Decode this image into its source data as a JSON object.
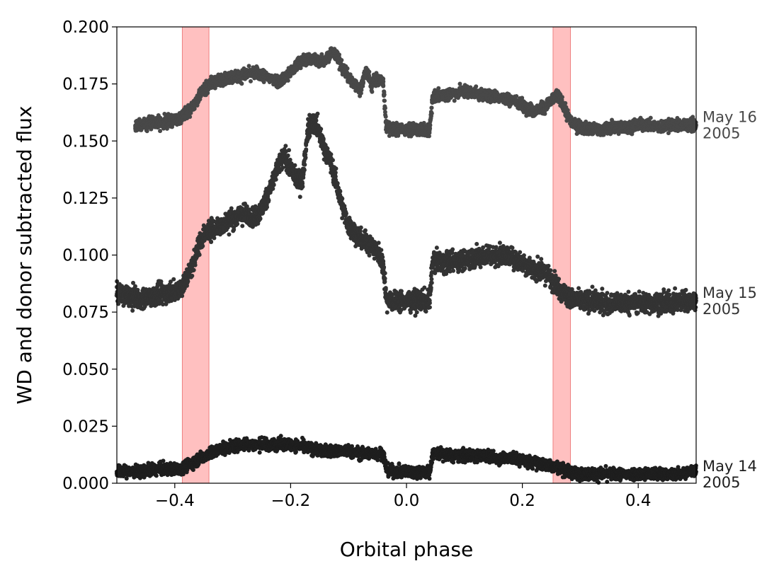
{
  "chart_data": {
    "type": "scatter",
    "title": "",
    "xlabel": "Orbital phase",
    "ylabel": "WD and donor subtracted flux",
    "xlim": [
      -0.5,
      0.5
    ],
    "ylim": [
      0.0,
      0.2
    ],
    "grid": false,
    "legend": "none",
    "x_ticks": [
      -0.4,
      -0.2,
      0.0,
      0.2,
      0.4
    ],
    "x_tick_labels": [
      "−0.4",
      "−0.2",
      "0.0",
      "0.2",
      "0.4"
    ],
    "y_ticks": [
      0.0,
      0.025,
      0.05,
      0.075,
      0.1,
      0.125,
      0.15,
      0.175,
      0.2
    ],
    "y_tick_labels": [
      "0.000",
      "0.025",
      "0.050",
      "0.075",
      "0.100",
      "0.125",
      "0.150",
      "0.175",
      "0.200"
    ],
    "shaded_bands": [
      {
        "x0": -0.387,
        "x1": -0.341,
        "color": "#ff9999"
      },
      {
        "x0": 0.253,
        "x1": 0.283,
        "color": "#ff9999"
      }
    ],
    "series": [
      {
        "label_line1": "May 16",
        "label_line2": "2005",
        "label_y": 0.157,
        "color": "#484848",
        "noise": 0.0013,
        "x": [
          -0.468,
          -0.45,
          -0.42,
          -0.4,
          -0.385,
          -0.37,
          -0.355,
          -0.34,
          -0.32,
          -0.3,
          -0.28,
          -0.26,
          -0.24,
          -0.22,
          -0.2,
          -0.19,
          -0.18,
          -0.17,
          -0.16,
          -0.15,
          -0.14,
          -0.13,
          -0.12,
          -0.11,
          -0.1,
          -0.09,
          -0.08,
          -0.075,
          -0.07,
          -0.065,
          -0.06,
          -0.055,
          -0.05,
          -0.04,
          -0.035,
          -0.02,
          0.0,
          0.02,
          0.04,
          0.045,
          0.06,
          0.08,
          0.1,
          0.12,
          0.14,
          0.16,
          0.18,
          0.2,
          0.22,
          0.24,
          0.255,
          0.26,
          0.27,
          0.28,
          0.29,
          0.3,
          0.32,
          0.34,
          0.36,
          0.38,
          0.4,
          0.42,
          0.44,
          0.46,
          0.48,
          0.5
        ],
        "y": [
          0.156,
          0.158,
          0.158,
          0.159,
          0.161,
          0.165,
          0.171,
          0.175,
          0.177,
          0.178,
          0.179,
          0.18,
          0.178,
          0.176,
          0.18,
          0.183,
          0.185,
          0.186,
          0.186,
          0.185,
          0.186,
          0.189,
          0.187,
          0.182,
          0.178,
          0.175,
          0.172,
          0.177,
          0.181,
          0.178,
          0.174,
          0.177,
          0.177,
          0.176,
          0.156,
          0.155,
          0.155,
          0.155,
          0.155,
          0.169,
          0.17,
          0.171,
          0.172,
          0.171,
          0.17,
          0.169,
          0.168,
          0.166,
          0.163,
          0.165,
          0.169,
          0.17,
          0.166,
          0.16,
          0.157,
          0.156,
          0.155,
          0.155,
          0.156,
          0.156,
          0.157,
          0.157,
          0.156,
          0.157,
          0.157,
          0.157
        ]
      },
      {
        "label_line1": "May 15",
        "label_line2": "2005",
        "label_y": 0.08,
        "color": "#333333",
        "noise": 0.0022,
        "x": [
          -0.5,
          -0.48,
          -0.46,
          -0.44,
          -0.42,
          -0.4,
          -0.385,
          -0.37,
          -0.36,
          -0.35,
          -0.34,
          -0.32,
          -0.3,
          -0.28,
          -0.26,
          -0.25,
          -0.24,
          -0.23,
          -0.22,
          -0.21,
          -0.2,
          -0.19,
          -0.18,
          -0.17,
          -0.165,
          -0.16,
          -0.155,
          -0.15,
          -0.14,
          -0.13,
          -0.12,
          -0.11,
          -0.1,
          -0.09,
          -0.08,
          -0.07,
          -0.06,
          -0.05,
          -0.04,
          -0.035,
          -0.02,
          0.0,
          0.02,
          0.04,
          0.045,
          0.06,
          0.08,
          0.1,
          0.12,
          0.14,
          0.16,
          0.18,
          0.2,
          0.22,
          0.24,
          0.255,
          0.27,
          0.28,
          0.3,
          0.32,
          0.34,
          0.36,
          0.38,
          0.4,
          0.42,
          0.44,
          0.46,
          0.48,
          0.5
        ],
        "y": [
          0.083,
          0.082,
          0.081,
          0.082,
          0.083,
          0.084,
          0.087,
          0.095,
          0.103,
          0.109,
          0.111,
          0.113,
          0.116,
          0.118,
          0.117,
          0.12,
          0.126,
          0.133,
          0.14,
          0.143,
          0.138,
          0.133,
          0.132,
          0.155,
          0.158,
          0.158,
          0.157,
          0.153,
          0.146,
          0.14,
          0.13,
          0.12,
          0.113,
          0.11,
          0.107,
          0.106,
          0.104,
          0.101,
          0.096,
          0.081,
          0.08,
          0.08,
          0.08,
          0.08,
          0.097,
          0.097,
          0.097,
          0.098,
          0.099,
          0.1,
          0.1,
          0.099,
          0.097,
          0.094,
          0.092,
          0.088,
          0.084,
          0.081,
          0.08,
          0.08,
          0.079,
          0.079,
          0.079,
          0.079,
          0.079,
          0.079,
          0.079,
          0.08,
          0.08
        ]
      },
      {
        "label_line1": "May 14",
        "label_line2": "2005",
        "label_y": 0.004,
        "color": "#1e1e1e",
        "noise": 0.0013,
        "x": [
          -0.5,
          -0.48,
          -0.46,
          -0.44,
          -0.42,
          -0.4,
          -0.385,
          -0.37,
          -0.355,
          -0.34,
          -0.32,
          -0.3,
          -0.28,
          -0.26,
          -0.24,
          -0.22,
          -0.2,
          -0.18,
          -0.16,
          -0.14,
          -0.12,
          -0.1,
          -0.08,
          -0.06,
          -0.04,
          -0.035,
          -0.02,
          0.0,
          0.02,
          0.04,
          0.045,
          0.06,
          0.08,
          0.1,
          0.12,
          0.14,
          0.16,
          0.18,
          0.2,
          0.22,
          0.24,
          0.26,
          0.28,
          0.3,
          0.32,
          0.34,
          0.36,
          0.38,
          0.4,
          0.42,
          0.44,
          0.46,
          0.48,
          0.5
        ],
        "y": [
          0.005,
          0.005,
          0.005,
          0.006,
          0.006,
          0.006,
          0.007,
          0.009,
          0.011,
          0.013,
          0.015,
          0.016,
          0.017,
          0.017,
          0.017,
          0.017,
          0.017,
          0.016,
          0.015,
          0.014,
          0.014,
          0.014,
          0.013,
          0.013,
          0.013,
          0.006,
          0.005,
          0.005,
          0.005,
          0.005,
          0.013,
          0.013,
          0.012,
          0.012,
          0.012,
          0.012,
          0.011,
          0.011,
          0.01,
          0.009,
          0.008,
          0.007,
          0.005,
          0.004,
          0.004,
          0.004,
          0.004,
          0.004,
          0.004,
          0.004,
          0.004,
          0.004,
          0.005,
          0.005
        ]
      }
    ]
  }
}
